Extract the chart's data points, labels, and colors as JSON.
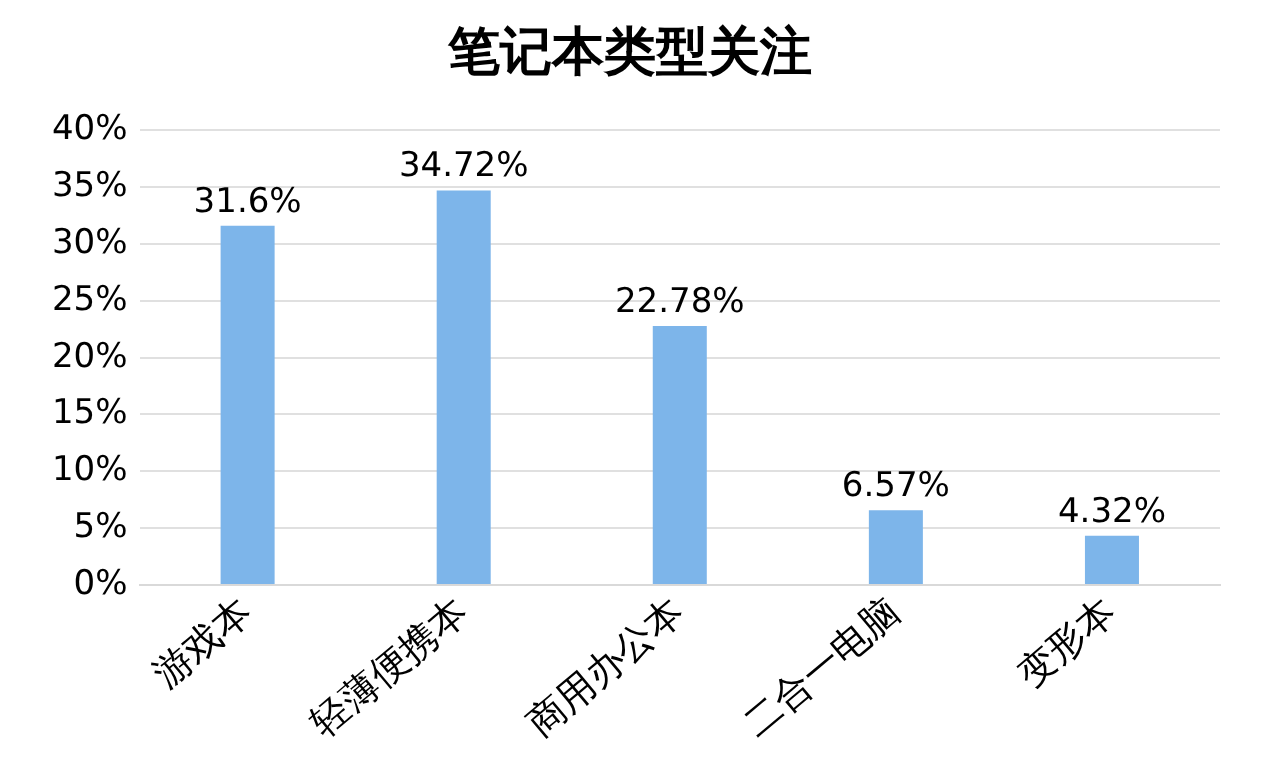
{
  "chart_data": {
    "type": "bar",
    "title": "笔记本类型关注",
    "categories": [
      "游戏本",
      "轻薄便携本",
      "商用办公本",
      "二合一电脑",
      "变形本"
    ],
    "values": [
      31.6,
      34.72,
      22.78,
      6.57,
      4.32
    ],
    "value_labels": [
      "31.6%",
      "34.72%",
      "22.78%",
      "6.57%",
      "4.32%"
    ],
    "color": "#7db5ea",
    "ylim": [
      0,
      40
    ],
    "yticks": [
      {
        "value": 0,
        "label": "0%"
      },
      {
        "value": 5,
        "label": "5%"
      },
      {
        "value": 10,
        "label": "10%"
      },
      {
        "value": 15,
        "label": "15%"
      },
      {
        "value": 20,
        "label": "20%"
      },
      {
        "value": 25,
        "label": "25%"
      },
      {
        "value": 30,
        "label": "30%"
      },
      {
        "value": 35,
        "label": "35%"
      },
      {
        "value": 40,
        "label": "40%"
      }
    ],
    "grid": "y",
    "legend": false
  }
}
